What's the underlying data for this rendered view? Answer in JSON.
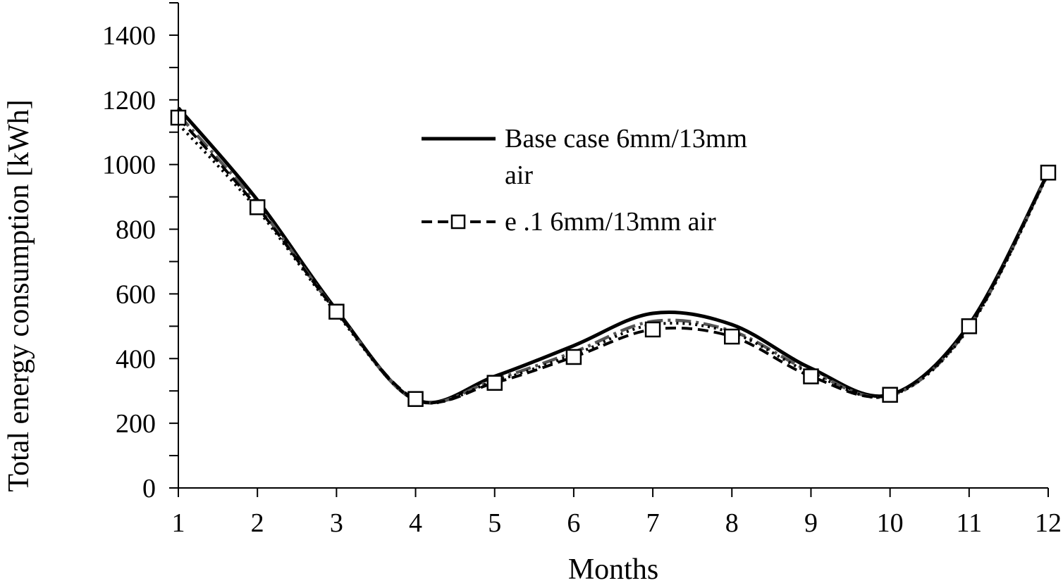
{
  "chart_data": {
    "type": "line",
    "xlabel": "Months",
    "ylabel": "Total energy consumption [kWh]",
    "categories": [
      "1",
      "2",
      "3",
      "4",
      "5",
      "6",
      "7",
      "8",
      "9",
      "10",
      "11",
      "12"
    ],
    "x": [
      1,
      2,
      3,
      4,
      5,
      6,
      7,
      8,
      9,
      10,
      11,
      12
    ],
    "ylim": [
      0,
      1500
    ],
    "yticks": [
      0,
      200,
      400,
      600,
      800,
      1000,
      1200,
      1400
    ],
    "ytick_labels": [
      "0",
      "200",
      "400",
      "600",
      "800",
      "1000",
      "1200",
      "1400"
    ],
    "grid": false,
    "legend": {
      "placement": "center"
    },
    "series": [
      {
        "name": "Base case 6mm/13mm air",
        "legend_lines": [
          "Base case 6mm/13mm",
          "air"
        ],
        "style": "solid",
        "color": "#000000",
        "marker": "none",
        "values": [
          1175,
          890,
          550,
          272,
          345,
          440,
          540,
          505,
          370,
          288,
          505,
          975
        ]
      },
      {
        "name": "",
        "style": "dash-dot",
        "color": "#555555",
        "marker": "none",
        "values": [
          1155,
          875,
          545,
          272,
          335,
          420,
          515,
          485,
          360,
          285,
          498,
          972
        ]
      },
      {
        "name": "",
        "style": "dotted",
        "color": "#000000",
        "marker": "none",
        "values": [
          1125,
          860,
          540,
          272,
          330,
          412,
          505,
          480,
          355,
          285,
          495,
          970
        ]
      },
      {
        "name": "e .1 6mm/13mm air",
        "legend_lines": [
          "e .1 6mm/13mm air"
        ],
        "style": "dashed",
        "color": "#000000",
        "marker": "square",
        "values": [
          1145,
          868,
          545,
          275,
          325,
          405,
          490,
          468,
          345,
          288,
          500,
          975
        ]
      }
    ]
  }
}
